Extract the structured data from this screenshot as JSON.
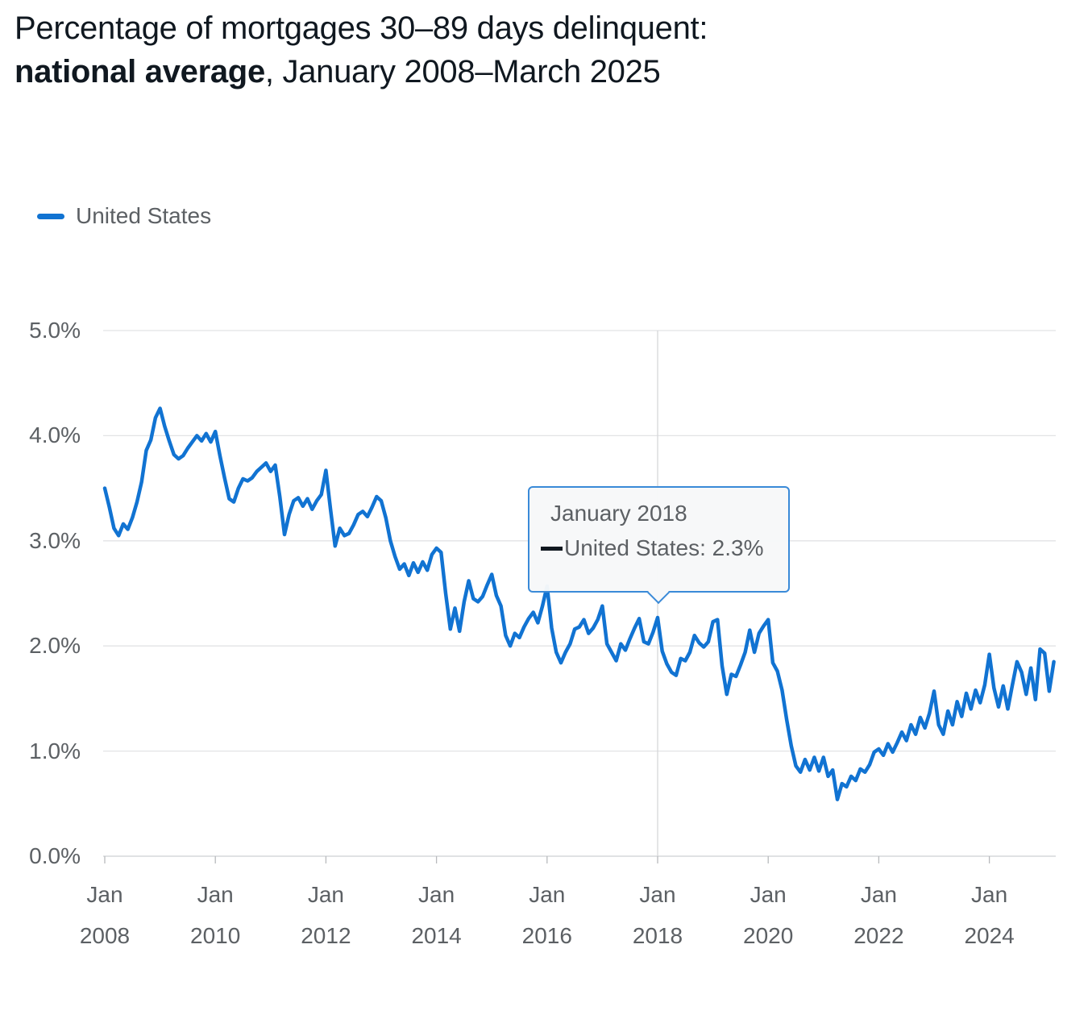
{
  "title": {
    "line1": "Percentage of mortgages 30–89 days delinquent:",
    "line2_bold": "national average",
    "line2_rest": ", January 2008–March 2025"
  },
  "legend": {
    "series_label": "United States",
    "swatch_color": "#1173d2"
  },
  "tooltip": {
    "date": "January 2018",
    "series_value": "United States: 2.3%",
    "marker_color": "#101820"
  },
  "colors": {
    "line": "#1173d2",
    "title_text": "#101820",
    "axis_text": "#5c6064",
    "gridline": "#e2e3e5",
    "axis_line": "#cdd0d3",
    "crosshair": "#d6d7d9",
    "tick": "#b8babd",
    "tooltip_border": "#3a8ad8"
  },
  "chart_data": {
    "type": "line",
    "title": "Percentage of mortgages 30–89 days delinquent: national average, January 2008–March 2025",
    "x_range": [
      "2008-01",
      "2025-03"
    ],
    "frequency": "monthly",
    "ylim": [
      0,
      5
    ],
    "grid": "horizontal",
    "legend_position": "top-left",
    "y_tick_labels": [
      "5.0%",
      "4.0%",
      "3.0%",
      "2.0%",
      "1.0%",
      "0.0%"
    ],
    "x_ticks": [
      {
        "month": "Jan",
        "year": "2008"
      },
      {
        "month": "Jan",
        "year": "2010"
      },
      {
        "month": "Jan",
        "year": "2012"
      },
      {
        "month": "Jan",
        "year": "2014"
      },
      {
        "month": "Jan",
        "year": "2016"
      },
      {
        "month": "Jan",
        "year": "2018"
      },
      {
        "month": "Jan",
        "year": "2020"
      },
      {
        "month": "Jan",
        "year": "2022"
      },
      {
        "month": "Jan",
        "year": "2024"
      }
    ],
    "crosshair": {
      "x": "2018-01",
      "label": "January 2018",
      "value": 2.3,
      "display_value": "2.3%"
    },
    "series": [
      {
        "name": "United States",
        "color": "#1173d2",
        "start": "2008-01",
        "values": [
          3.5,
          3.32,
          3.12,
          3.05,
          3.16,
          3.11,
          3.22,
          3.37,
          3.56,
          3.86,
          3.96,
          4.17,
          4.26,
          4.09,
          3.95,
          3.82,
          3.78,
          3.81,
          3.88,
          3.94,
          4.0,
          3.95,
          4.02,
          3.94,
          4.04,
          3.81,
          3.6,
          3.4,
          3.37,
          3.5,
          3.59,
          3.57,
          3.6,
          3.66,
          3.7,
          3.74,
          3.66,
          3.72,
          3.42,
          3.06,
          3.25,
          3.38,
          3.41,
          3.33,
          3.4,
          3.3,
          3.38,
          3.44,
          3.67,
          3.3,
          2.95,
          3.12,
          3.05,
          3.07,
          3.15,
          3.25,
          3.28,
          3.23,
          3.32,
          3.42,
          3.38,
          3.22,
          3.0,
          2.85,
          2.73,
          2.78,
          2.67,
          2.79,
          2.7,
          2.8,
          2.72,
          2.87,
          2.93,
          2.89,
          2.5,
          2.16,
          2.36,
          2.14,
          2.42,
          2.62,
          2.45,
          2.42,
          2.47,
          2.58,
          2.68,
          2.48,
          2.38,
          2.1,
          2.0,
          2.12,
          2.08,
          2.18,
          2.26,
          2.32,
          2.22,
          2.38,
          2.57,
          2.17,
          1.94,
          1.84,
          1.94,
          2.02,
          2.16,
          2.18,
          2.25,
          2.12,
          2.17,
          2.25,
          2.38,
          2.02,
          1.94,
          1.86,
          2.02,
          1.96,
          2.07,
          2.17,
          2.26,
          2.04,
          2.02,
          2.13,
          2.27,
          1.95,
          1.83,
          1.75,
          1.72,
          1.88,
          1.86,
          1.94,
          2.1,
          2.03,
          1.99,
          2.04,
          2.23,
          2.25,
          1.81,
          1.54,
          1.73,
          1.71,
          1.82,
          1.94,
          2.15,
          1.94,
          2.12,
          2.19,
          2.25,
          1.84,
          1.76,
          1.58,
          1.3,
          1.05,
          0.86,
          0.8,
          0.92,
          0.82,
          0.94,
          0.81,
          0.94,
          0.76,
          0.82,
          0.54,
          0.69,
          0.66,
          0.76,
          0.72,
          0.83,
          0.8,
          0.87,
          0.99,
          1.02,
          0.96,
          1.07,
          0.99,
          1.08,
          1.18,
          1.1,
          1.25,
          1.16,
          1.32,
          1.22,
          1.36,
          1.57,
          1.25,
          1.16,
          1.38,
          1.25,
          1.47,
          1.33,
          1.55,
          1.4,
          1.58,
          1.46,
          1.63,
          1.92,
          1.6,
          1.42,
          1.62,
          1.4,
          1.63,
          1.85,
          1.75,
          1.54,
          1.79,
          1.49,
          1.97,
          1.93,
          1.57,
          1.85
        ]
      }
    ]
  }
}
